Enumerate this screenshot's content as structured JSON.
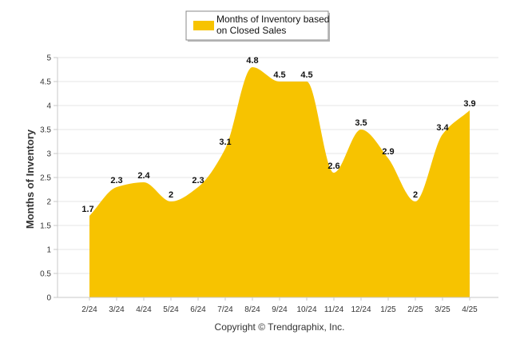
{
  "chart_data": {
    "type": "area",
    "categories": [
      "2/24",
      "3/24",
      "4/24",
      "5/24",
      "6/24",
      "7/24",
      "8/24",
      "9/24",
      "10/24",
      "11/24",
      "12/24",
      "1/25",
      "2/25",
      "3/25",
      "4/25"
    ],
    "series": [
      {
        "name": "Months of Inventory based on Closed Sales",
        "values": [
          1.7,
          2.3,
          2.4,
          2,
          2.3,
          3.1,
          4.8,
          4.5,
          4.5,
          2.6,
          3.5,
          2.9,
          2,
          3.4,
          3.9
        ],
        "labels": [
          "1.7",
          "2.3",
          "2.4",
          "2",
          "2.3",
          "3.1",
          "4.8",
          "4.5",
          "4.5",
          "2.6",
          "3.5",
          "2.9",
          "2",
          "3.4",
          "3.9"
        ]
      }
    ],
    "ylabel": "Months of Inventory",
    "xlabel": "",
    "ylim": [
      0,
      5
    ],
    "yticks": [
      "0",
      "0.5",
      "1",
      "1.5",
      "2",
      "2.5",
      "3",
      "3.5",
      "4",
      "4.5",
      "5"
    ],
    "grid": true,
    "legend_position": "top-center",
    "legend_lines": [
      "Months of Inventory based",
      "on Closed Sales"
    ],
    "colors": {
      "area": "#F7C300",
      "legend_swatch": "#F7C300",
      "grid": "#e6e6e6",
      "axis": "#c8c8c8"
    }
  },
  "footer": {
    "credit": "Copyright © Trendgraphix, Inc."
  }
}
